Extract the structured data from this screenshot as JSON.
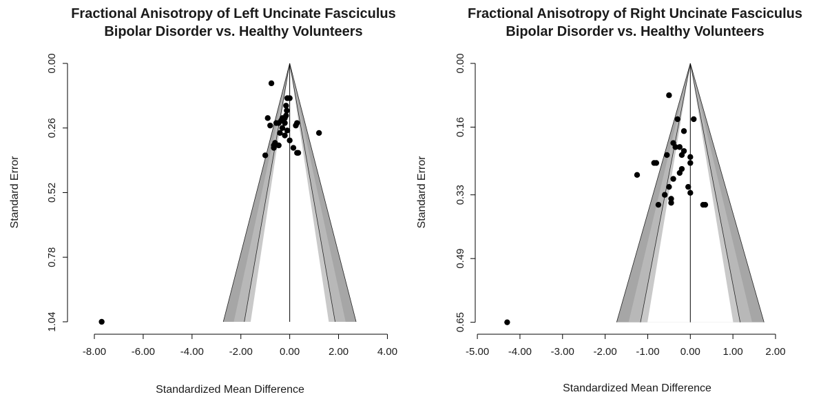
{
  "chart_data": [
    {
      "type": "scatter",
      "subtype": "funnel-plot",
      "title": [
        "Fractional Anisotropy of Left Uncinate Fasciculus",
        "Bipolar Disorder vs. Healthy Volunteers"
      ],
      "xlabel": "Standardized Mean Difference",
      "ylabel": "Standard Error",
      "xlim": [
        -9.1,
        4.1
      ],
      "ylim": [
        1.09,
        0.0
      ],
      "y_reversed": true,
      "x_ticks": [
        -8,
        -6,
        -4,
        -2,
        0,
        2,
        4
      ],
      "x_tick_labels": [
        "-8.00",
        "-6.00",
        "-4.00",
        "-2.00",
        "0.00",
        "2.00",
        "4.00"
      ],
      "y_ticks": [
        0.0,
        0.26,
        0.52,
        0.78,
        1.04
      ],
      "y_tick_labels": [
        "0.00",
        "0.26",
        "0.52",
        "0.78",
        "1.04"
      ],
      "center_line_x": 0.0,
      "funnel_apex": [
        0.0,
        0.0
      ],
      "funnel_limits": {
        "inner_half_width_at_max_se": 1.86,
        "outer_half_width_at_max_se": 2.72,
        "max_se": 1.04
      },
      "grid": false,
      "points": [
        {
          "x": -7.7,
          "y": 1.04
        },
        {
          "x": -0.75,
          "y": 0.08
        },
        {
          "x": -0.1,
          "y": 0.14
        },
        {
          "x": 0.0,
          "y": 0.14
        },
        {
          "x": -0.15,
          "y": 0.17
        },
        {
          "x": -0.12,
          "y": 0.19
        },
        {
          "x": -0.15,
          "y": 0.21
        },
        {
          "x": -0.2,
          "y": 0.22
        },
        {
          "x": -0.3,
          "y": 0.22
        },
        {
          "x": -0.25,
          "y": 0.23
        },
        {
          "x": -0.35,
          "y": 0.23
        },
        {
          "x": -0.2,
          "y": 0.24
        },
        {
          "x": -0.9,
          "y": 0.22
        },
        {
          "x": -0.55,
          "y": 0.24
        },
        {
          "x": -0.45,
          "y": 0.24
        },
        {
          "x": -0.8,
          "y": 0.25
        },
        {
          "x": 0.3,
          "y": 0.24
        },
        {
          "x": 0.25,
          "y": 0.25
        },
        {
          "x": -0.3,
          "y": 0.26
        },
        {
          "x": -0.1,
          "y": 0.27
        },
        {
          "x": -0.4,
          "y": 0.28
        },
        {
          "x": 1.2,
          "y": 0.28
        },
        {
          "x": -0.2,
          "y": 0.29
        },
        {
          "x": 0.0,
          "y": 0.31
        },
        {
          "x": -0.6,
          "y": 0.32
        },
        {
          "x": -0.65,
          "y": 0.33
        },
        {
          "x": -0.45,
          "y": 0.33
        },
        {
          "x": -0.65,
          "y": 0.34
        },
        {
          "x": 0.15,
          "y": 0.34
        },
        {
          "x": 0.3,
          "y": 0.36
        },
        {
          "x": 0.35,
          "y": 0.36
        },
        {
          "x": -1.0,
          "y": 0.37
        }
      ]
    },
    {
      "type": "scatter",
      "subtype": "funnel-plot",
      "title": [
        "Fractional Anisotropy of Right Uncinate Fasciculus",
        "Bipolar Disorder vs. Healthy Volunteers"
      ],
      "xlabel": "Standardized Mean Difference",
      "ylabel": "Standard Error",
      "xlim": [
        -5.05,
        2.55
      ],
      "ylim": [
        0.68,
        0.0
      ],
      "y_reversed": true,
      "x_ticks": [
        -5,
        -4,
        -3,
        -2,
        -1,
        0,
        1,
        2
      ],
      "x_tick_labels": [
        "-5.00",
        "-4.00",
        "-3.00",
        "-2.00",
        "-1.00",
        "0.00",
        "1.00",
        "2.00"
      ],
      "y_ticks": [
        0.0,
        0.16,
        0.33,
        0.49,
        0.65
      ],
      "y_tick_labels": [
        "0.00",
        "0.16",
        "0.33",
        "0.49",
        "0.65"
      ],
      "center_line_x": 0.0,
      "funnel_apex": [
        0.0,
        0.0
      ],
      "funnel_limits": {
        "inner_half_width_at_max_se": 1.17,
        "outer_half_width_at_max_se": 1.73,
        "max_se": 0.65
      },
      "grid": false,
      "points": [
        {
          "x": -4.3,
          "y": 0.65
        },
        {
          "x": -0.5,
          "y": 0.08
        },
        {
          "x": 0.08,
          "y": 0.14
        },
        {
          "x": -0.3,
          "y": 0.14
        },
        {
          "x": -0.15,
          "y": 0.17
        },
        {
          "x": -0.4,
          "y": 0.2
        },
        {
          "x": -0.25,
          "y": 0.21
        },
        {
          "x": -0.35,
          "y": 0.21
        },
        {
          "x": -0.15,
          "y": 0.22
        },
        {
          "x": -0.55,
          "y": 0.23
        },
        {
          "x": -0.2,
          "y": 0.23
        },
        {
          "x": 0.0,
          "y": 0.235
        },
        {
          "x": 0.0,
          "y": 0.25
        },
        {
          "x": -0.85,
          "y": 0.25
        },
        {
          "x": -0.8,
          "y": 0.25
        },
        {
          "x": -0.2,
          "y": 0.265
        },
        {
          "x": -0.25,
          "y": 0.275
        },
        {
          "x": -1.25,
          "y": 0.28
        },
        {
          "x": -0.4,
          "y": 0.29
        },
        {
          "x": -0.5,
          "y": 0.31
        },
        {
          "x": -0.05,
          "y": 0.31
        },
        {
          "x": 0.0,
          "y": 0.325
        },
        {
          "x": -0.6,
          "y": 0.33
        },
        {
          "x": -0.45,
          "y": 0.34
        },
        {
          "x": -0.45,
          "y": 0.35
        },
        {
          "x": 0.3,
          "y": 0.355
        },
        {
          "x": 0.35,
          "y": 0.355
        },
        {
          "x": -0.75,
          "y": 0.355
        }
      ]
    }
  ]
}
